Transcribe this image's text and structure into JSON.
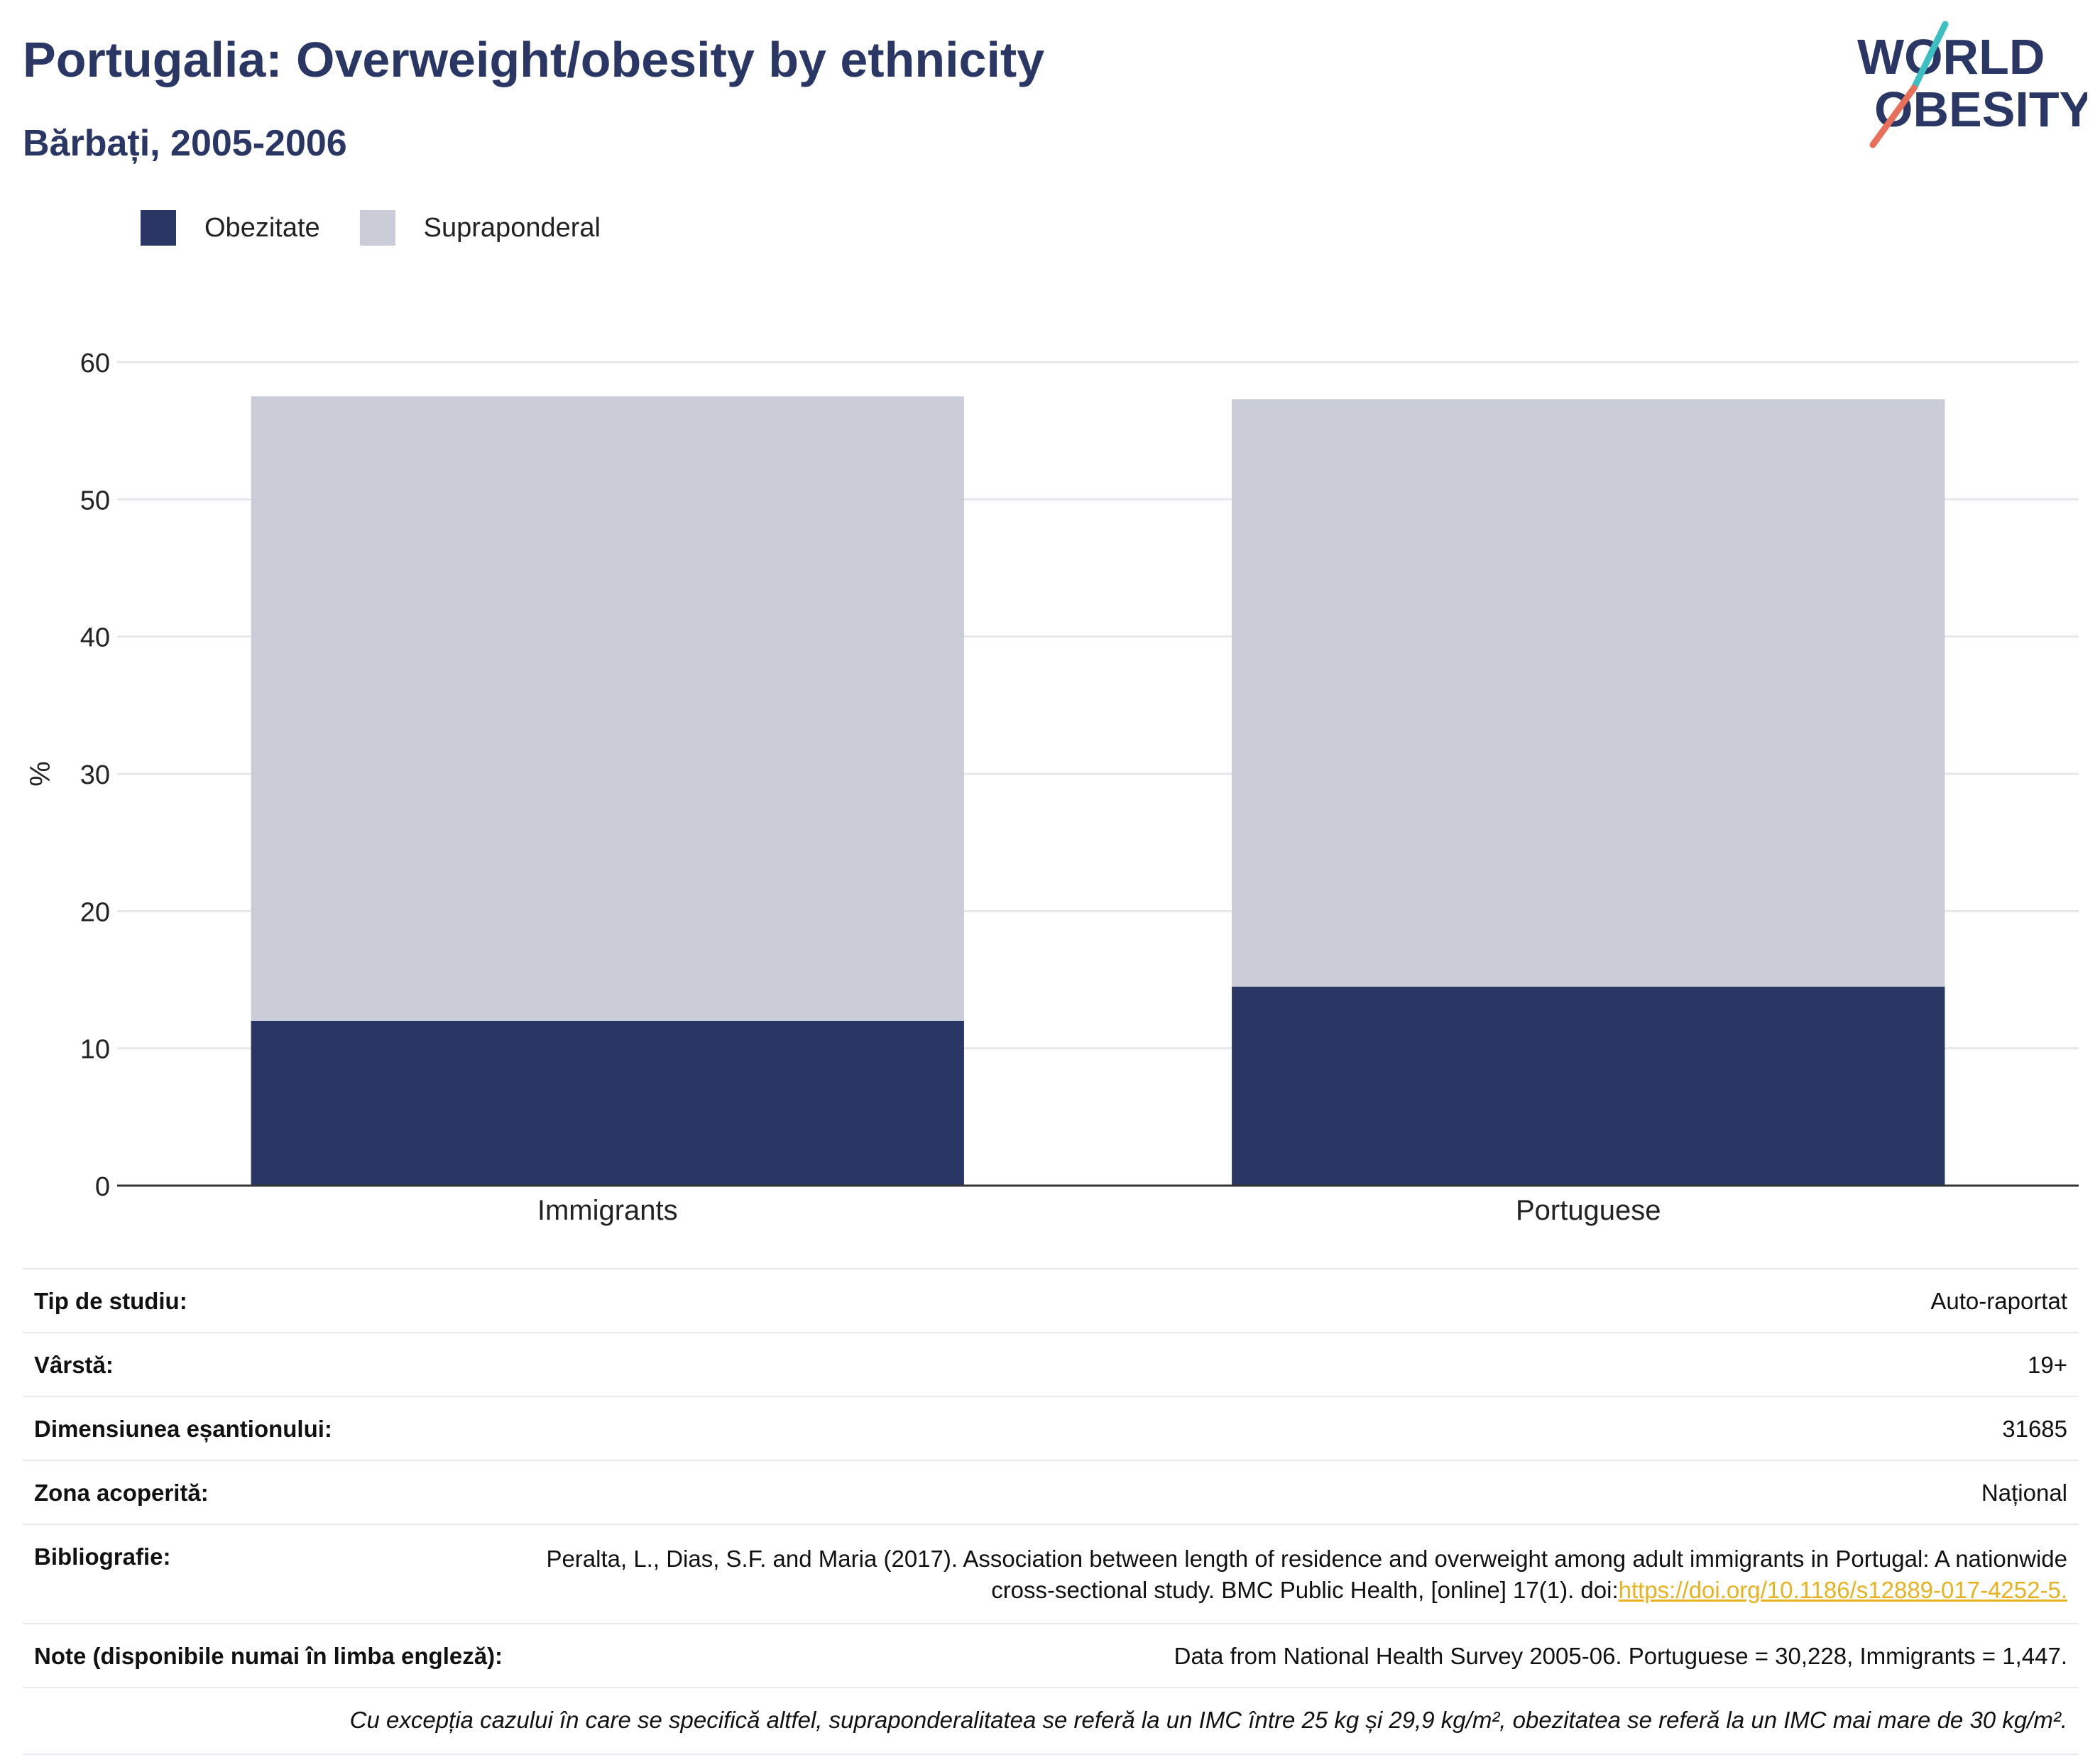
{
  "header": {
    "title": "Portugalia: Overweight/obesity by ethnicity",
    "subtitle": "Bărbați, 2005-2006",
    "logo_line1": "WORLD",
    "logo_line2": "OBESITY"
  },
  "legend": [
    {
      "label": "Obezitate",
      "color": "#2a3765"
    },
    {
      "label": "Supraponderal",
      "color": "#cacdd8"
    }
  ],
  "chart_data": {
    "type": "bar",
    "stacked": true,
    "categories": [
      "Immigrants",
      "Portuguese"
    ],
    "series": [
      {
        "name": "Obezitate",
        "values": [
          12.0,
          14.5
        ],
        "color": "#2a3765"
      },
      {
        "name": "Supraponderal",
        "values": [
          45.5,
          42.8
        ],
        "color": "#cacdd8"
      }
    ],
    "ylabel": "%",
    "ylim": [
      0,
      60
    ],
    "yticks": [
      0,
      10,
      20,
      30,
      40,
      50,
      60
    ],
    "grid": true,
    "legend_position": "top-left"
  },
  "info": {
    "rows": [
      {
        "key": "Tip de studiu:",
        "value": "Auto-raportat"
      },
      {
        "key": "Vârstă:",
        "value": "19+"
      },
      {
        "key": "Dimensiunea eșantionului:",
        "value": "31685"
      },
      {
        "key": "Zona acoperită:",
        "value": "Național"
      }
    ],
    "bibliography_key": "Bibliografie:",
    "bibliography_text": "Peralta, L., Dias, S.F. and Maria (2017). Association between length of residence and overweight among adult immigrants in Portugal: A nationwide cross-sectional study. BMC Public Health, [online] 17(1). doi:",
    "bibliography_link": "https://doi.org/10.1186/s12889-017-4252-5.",
    "notes_key": "Note (disponibile numai în limba engleză):",
    "notes_value": "Data from National Health Survey 2005-06. Portuguese = 30,228, Immigrants = 1,447.",
    "footnote": "Cu excepția cazului în care se specifică altfel, supraponderalitatea se referă la un IMC între 25 kg și 29,9 kg/m², obezitatea se referă la un IMC mai mare de 30 kg/m²."
  }
}
